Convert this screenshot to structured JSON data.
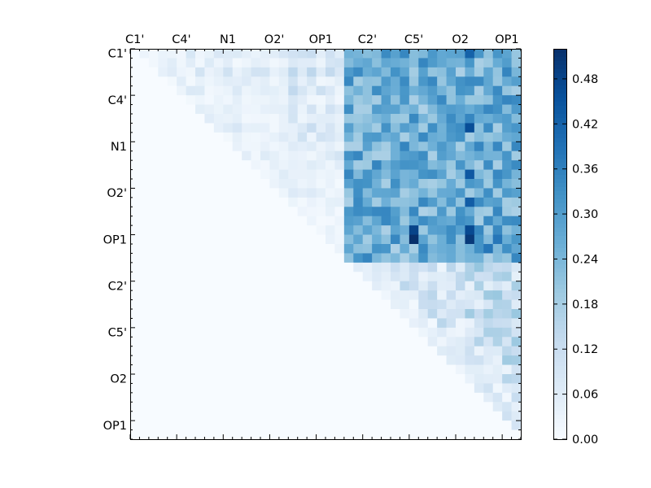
{
  "chart_data": {
    "type": "heatmap",
    "title": "",
    "xlabel": "",
    "ylabel": "",
    "colormap": "Blues",
    "upper_triangle_only": true,
    "grid": false,
    "x_tick_labels": [
      "C1'",
      "C4'",
      "N1",
      "O2'",
      "OP1",
      "C2'",
      "C5'",
      "O2",
      "OP1"
    ],
    "y_tick_labels": [
      "C1'",
      "C4'",
      "N1",
      "O2'",
      "OP1",
      "C2'",
      "C5'",
      "O2",
      "OP1"
    ],
    "n_rows": 42,
    "n_cols": 42,
    "colorbar": {
      "min": 0.0,
      "max": 0.52,
      "tick_labels": [
        "0.00",
        "0.06",
        "0.12",
        "0.18",
        "0.24",
        "0.30",
        "0.36",
        "0.42",
        "0.48"
      ]
    },
    "row_profile": [
      0.05,
      0.04,
      0.06,
      0.04,
      0.05,
      0.03,
      0.04,
      0.04,
      0.05,
      0.04,
      0.04,
      0.04,
      0.04,
      0.04,
      0.03,
      0.04,
      0.03,
      0.03,
      0.02,
      0.03,
      0.03,
      0.03,
      0.03,
      0.03,
      0.03,
      0.02,
      0.03,
      0.05,
      0.04,
      0.04,
      0.03,
      0.03,
      0.03,
      0.03,
      0.04,
      0.03,
      0.03,
      0.03,
      0.03,
      0.02,
      0.02,
      0.02
    ],
    "block_strength": {
      "rows_0_9_cols_0_9": 0.04,
      "rows_0_23_cols_23_41": 0.26,
      "rows_23_41_cols_23_41": 0.1
    },
    "highlight_cells": [
      {
        "row": 20,
        "col": 30,
        "value": 0.52
      },
      {
        "row": 19,
        "col": 30,
        "value": 0.48
      },
      {
        "row": 20,
        "col": 36,
        "value": 0.5
      },
      {
        "row": 19,
        "col": 36,
        "value": 0.47
      },
      {
        "row": 0,
        "col": 36,
        "value": 0.42
      },
      {
        "row": 13,
        "col": 36,
        "value": 0.44
      },
      {
        "row": 21,
        "col": 38,
        "value": 0.38
      },
      {
        "row": 20,
        "col": 39,
        "value": 0.38
      },
      {
        "row": 8,
        "col": 36,
        "value": 0.46
      },
      {
        "row": 16,
        "col": 36,
        "value": 0.43
      }
    ]
  }
}
